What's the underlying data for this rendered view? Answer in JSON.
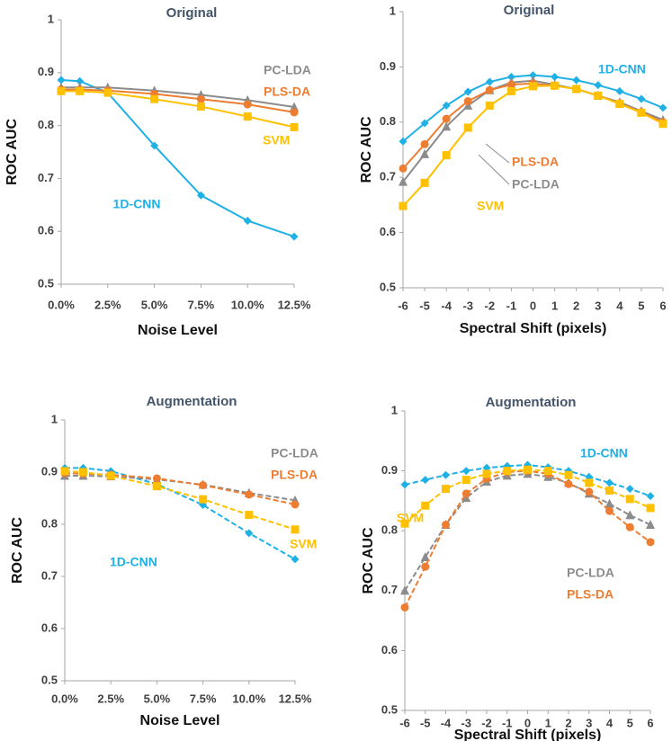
{
  "chart_data": [
    {
      "type": "line",
      "title": "Original",
      "xlabel": "Noise Level",
      "ylabel": "ROC AUC",
      "x": [
        0,
        1,
        2.5,
        5,
        7.5,
        10,
        12.5
      ],
      "xlim": [
        0,
        12.5
      ],
      "xticks": [
        {
          "value": 0,
          "label": "0.0%"
        },
        {
          "value": 2.5,
          "label": "2.5%"
        },
        {
          "value": 5,
          "label": "5.0%"
        },
        {
          "value": 7.5,
          "label": "7.5%"
        },
        {
          "value": 10,
          "label": "10.0%"
        },
        {
          "value": 12.5,
          "label": "12.5%"
        }
      ],
      "ylim": [
        0.5,
        1
      ],
      "yticks": [
        0.5,
        0.6,
        0.7,
        0.8,
        0.9,
        1
      ],
      "grid": false,
      "line_style": "solid",
      "series": [
        {
          "name": "1D-CNN",
          "color": "#1fb0e6",
          "marker": "diamond",
          "values": [
            0.886,
            0.884,
            0.862,
            0.762,
            0.668,
            0.62,
            0.59
          ]
        },
        {
          "name": "PC-LDA",
          "color": "#8c8c8c",
          "marker": "triangle",
          "values": [
            0.872,
            0.872,
            0.872,
            0.866,
            0.858,
            0.848,
            0.835
          ]
        },
        {
          "name": "PLS-DA",
          "color": "#ed7d31",
          "marker": "circle",
          "values": [
            0.868,
            0.868,
            0.866,
            0.86,
            0.85,
            0.84,
            0.825
          ]
        },
        {
          "name": "SVM",
          "color": "#ffc000",
          "marker": "square",
          "values": [
            0.865,
            0.865,
            0.862,
            0.85,
            0.836,
            0.817,
            0.797
          ]
        }
      ]
    },
    {
      "type": "line",
      "title": "Original",
      "xlabel": "Spectral Shift (pixels)",
      "ylabel": "ROC AUC",
      "x": [
        -6,
        -5,
        -4,
        -3,
        -2,
        -1,
        0,
        1,
        2,
        3,
        4,
        5,
        6
      ],
      "xlim": [
        -6,
        6
      ],
      "xticks": [
        -6,
        -5,
        -4,
        -3,
        -2,
        -1,
        0,
        1,
        2,
        3,
        4,
        5,
        6
      ],
      "ylim": [
        0.5,
        1
      ],
      "yticks": [
        0.5,
        0.6,
        0.7,
        0.8,
        0.9,
        1
      ],
      "grid": false,
      "line_style": "solid",
      "series": [
        {
          "name": "1D-CNN",
          "color": "#1fb0e6",
          "marker": "diamond",
          "values": [
            0.765,
            0.798,
            0.83,
            0.855,
            0.873,
            0.882,
            0.885,
            0.882,
            0.876,
            0.867,
            0.856,
            0.842,
            0.826
          ]
        },
        {
          "name": "PC-LDA",
          "color": "#8c8c8c",
          "marker": "triangle",
          "values": [
            0.692,
            0.742,
            0.792,
            0.83,
            0.858,
            0.872,
            0.875,
            0.868,
            0.86,
            0.848,
            0.836,
            0.82,
            0.804
          ]
        },
        {
          "name": "PLS-DA",
          "color": "#ed7d31",
          "marker": "circle",
          "values": [
            0.716,
            0.76,
            0.806,
            0.838,
            0.858,
            0.868,
            0.87,
            0.866,
            0.86,
            0.848,
            0.834,
            0.818,
            0.8
          ]
        },
        {
          "name": "SVM",
          "color": "#ffc000",
          "marker": "square",
          "values": [
            0.648,
            0.69,
            0.74,
            0.79,
            0.83,
            0.856,
            0.865,
            0.866,
            0.86,
            0.848,
            0.833,
            0.817,
            0.797
          ]
        }
      ]
    },
    {
      "type": "line",
      "title": "Augmentation",
      "xlabel": "Noise Level",
      "ylabel": "ROC AUC",
      "x": [
        0,
        1,
        2.5,
        5,
        7.5,
        10,
        12.5
      ],
      "xlim": [
        0,
        12.5
      ],
      "xticks": [
        {
          "value": 0,
          "label": "0.0%"
        },
        {
          "value": 2.5,
          "label": "2.5%"
        },
        {
          "value": 5,
          "label": "5.0%"
        },
        {
          "value": 7.5,
          "label": "7.5%"
        },
        {
          "value": 10,
          "label": "10.0%"
        },
        {
          "value": 12.5,
          "label": "12.5%"
        }
      ],
      "ylim": [
        0.5,
        1
      ],
      "yticks": [
        0.5,
        0.6,
        0.7,
        0.8,
        0.9,
        1
      ],
      "grid": false,
      "line_style": "dashed",
      "series": [
        {
          "name": "1D-CNN",
          "color": "#1fb0e6",
          "marker": "diamond",
          "values": [
            0.908,
            0.908,
            0.902,
            0.877,
            0.837,
            0.783,
            0.733
          ]
        },
        {
          "name": "PC-LDA",
          "color": "#8c8c8c",
          "marker": "triangle",
          "values": [
            0.893,
            0.893,
            0.892,
            0.886,
            0.876,
            0.86,
            0.846
          ]
        },
        {
          "name": "PLS-DA",
          "color": "#ed7d31",
          "marker": "circle",
          "values": [
            0.898,
            0.897,
            0.895,
            0.888,
            0.875,
            0.857,
            0.838
          ]
        },
        {
          "name": "SVM",
          "color": "#ffc000",
          "marker": "square",
          "values": [
            0.902,
            0.9,
            0.893,
            0.873,
            0.848,
            0.818,
            0.79
          ]
        }
      ]
    },
    {
      "type": "line",
      "title": "Augmentation",
      "xlabel": "Spectral Shift (pixels)",
      "ylabel": "ROC AUC",
      "x": [
        -6,
        -5,
        -4,
        -3,
        -2,
        -1,
        0,
        1,
        2,
        3,
        4,
        5,
        6
      ],
      "xlim": [
        -6,
        6
      ],
      "xticks": [
        -6,
        -5,
        -4,
        -3,
        -2,
        -1,
        0,
        1,
        2,
        3,
        4,
        5,
        6
      ],
      "ylim": [
        0.5,
        1
      ],
      "yticks": [
        0.5,
        0.6,
        0.7,
        0.8,
        0.9,
        1
      ],
      "grid": false,
      "line_style": "dashed",
      "series": [
        {
          "name": "1D-CNN",
          "color": "#1fb0e6",
          "marker": "diamond",
          "values": [
            0.877,
            0.885,
            0.893,
            0.9,
            0.905,
            0.908,
            0.91,
            0.906,
            0.9,
            0.89,
            0.88,
            0.87,
            0.858
          ]
        },
        {
          "name": "PC-LDA",
          "color": "#8c8c8c",
          "marker": "triangle",
          "values": [
            0.7,
            0.756,
            0.81,
            0.855,
            0.882,
            0.892,
            0.895,
            0.89,
            0.88,
            0.862,
            0.845,
            0.826,
            0.81
          ]
        },
        {
          "name": "PLS-DA",
          "color": "#ed7d31",
          "marker": "circle",
          "values": [
            0.672,
            0.74,
            0.81,
            0.862,
            0.887,
            0.898,
            0.9,
            0.895,
            0.878,
            0.865,
            0.833,
            0.806,
            0.781
          ]
        },
        {
          "name": "SVM",
          "color": "#ffc000",
          "marker": "square",
          "values": [
            0.812,
            0.842,
            0.87,
            0.885,
            0.895,
            0.9,
            0.902,
            0.9,
            0.893,
            0.88,
            0.867,
            0.853,
            0.838
          ]
        }
      ]
    }
  ]
}
